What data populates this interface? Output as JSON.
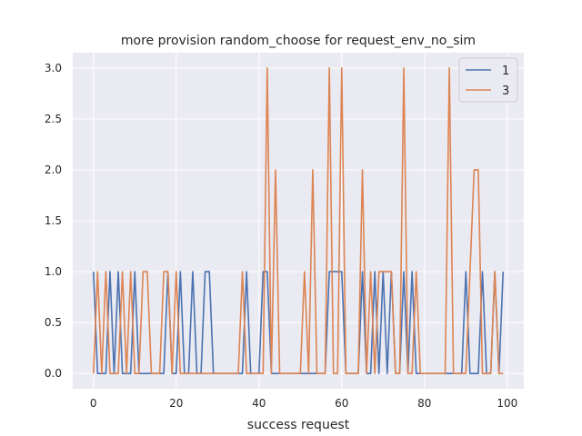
{
  "chart_data": {
    "type": "line",
    "title": "more provision random_choose for request_env_no_sim",
    "xlabel": "success request",
    "ylabel": "",
    "xlim": [
      -5,
      104
    ],
    "ylim": [
      -0.15,
      3.15
    ],
    "xticks": [
      0,
      20,
      40,
      60,
      80,
      100
    ],
    "xtick_labels": [
      "0",
      "20",
      "40",
      "60",
      "80",
      "100"
    ],
    "yticks": [
      0.0,
      0.5,
      1.0,
      1.5,
      2.0,
      2.5,
      3.0
    ],
    "ytick_labels": [
      "0.0",
      "0.5",
      "1.0",
      "1.5",
      "2.0",
      "2.5",
      "3.0"
    ],
    "grid": true,
    "legend_position": "top-right",
    "series": [
      {
        "name": "1",
        "color": "#4c72b0",
        "x": [
          0,
          1,
          2,
          3,
          4,
          5,
          6,
          7,
          8,
          9,
          10,
          11,
          12,
          13,
          14,
          15,
          16,
          17,
          18,
          19,
          20,
          21,
          22,
          23,
          24,
          25,
          26,
          27,
          28,
          29,
          30,
          31,
          32,
          33,
          34,
          35,
          36,
          37,
          38,
          39,
          40,
          41,
          42,
          43,
          44,
          45,
          46,
          47,
          48,
          49,
          50,
          51,
          52,
          53,
          54,
          55,
          56,
          57,
          58,
          59,
          60,
          61,
          62,
          63,
          64,
          65,
          66,
          67,
          68,
          69,
          70,
          71,
          72,
          73,
          74,
          75,
          76,
          77,
          78,
          79,
          80,
          81,
          82,
          83,
          84,
          85,
          86,
          87,
          88,
          89,
          90,
          91,
          92,
          93,
          94,
          95,
          96,
          97,
          98,
          99
        ],
        "values": [
          1,
          0,
          0,
          0,
          1,
          0,
          1,
          0,
          0,
          0,
          1,
          0,
          0,
          0,
          0,
          0,
          0,
          0,
          1,
          0,
          0,
          1,
          0,
          0,
          1,
          0,
          0,
          1,
          1,
          0,
          0,
          0,
          0,
          0,
          0,
          0,
          0,
          1,
          0,
          0,
          0,
          1,
          1,
          0,
          0,
          0,
          0,
          0,
          0,
          0,
          0,
          0,
          0,
          0,
          0,
          0,
          0,
          1,
          1,
          1,
          1,
          0,
          0,
          0,
          0,
          1,
          0,
          0,
          1,
          0,
          1,
          0,
          1,
          0,
          0,
          1,
          0,
          1,
          0,
          0,
          0,
          0,
          0,
          0,
          0,
          0,
          0,
          0,
          0,
          0,
          1,
          0,
          0,
          0,
          1,
          0,
          0,
          1,
          0,
          1
        ]
      },
      {
        "name": "3",
        "color": "#dd8452",
        "x": [
          0,
          1,
          2,
          3,
          4,
          5,
          6,
          7,
          8,
          9,
          10,
          11,
          12,
          13,
          14,
          15,
          16,
          17,
          18,
          19,
          20,
          21,
          22,
          23,
          24,
          25,
          26,
          27,
          28,
          29,
          30,
          31,
          32,
          33,
          34,
          35,
          36,
          37,
          38,
          39,
          40,
          41,
          42,
          43,
          44,
          45,
          46,
          47,
          48,
          49,
          50,
          51,
          52,
          53,
          54,
          55,
          56,
          57,
          58,
          59,
          60,
          61,
          62,
          63,
          64,
          65,
          66,
          67,
          68,
          69,
          70,
          71,
          72,
          73,
          74,
          75,
          76,
          77,
          78,
          79,
          80,
          81,
          82,
          83,
          84,
          85,
          86,
          87,
          88,
          89,
          90,
          91,
          92,
          93,
          94,
          95,
          96,
          97,
          98,
          99
        ],
        "values": [
          0,
          1,
          0,
          1,
          0,
          0,
          0,
          1,
          0,
          1,
          0,
          0,
          1,
          1,
          0,
          0,
          0,
          1,
          1,
          0,
          1,
          0,
          0,
          0,
          0,
          0,
          0,
          0,
          0,
          0,
          0,
          0,
          0,
          0,
          0,
          0,
          1,
          0,
          0,
          0,
          0,
          0,
          3,
          0,
          2,
          0,
          0,
          0,
          0,
          0,
          0,
          1,
          0,
          2,
          0,
          0,
          0,
          3,
          0,
          0,
          3,
          0,
          0,
          0,
          0,
          2,
          0,
          1,
          0,
          1,
          1,
          1,
          1,
          0,
          0,
          3,
          0,
          0,
          1,
          0,
          0,
          0,
          0,
          0,
          0,
          0,
          3,
          0,
          0,
          0,
          0,
          1,
          2,
          2,
          0,
          0,
          0,
          1,
          0,
          0
        ]
      }
    ]
  }
}
